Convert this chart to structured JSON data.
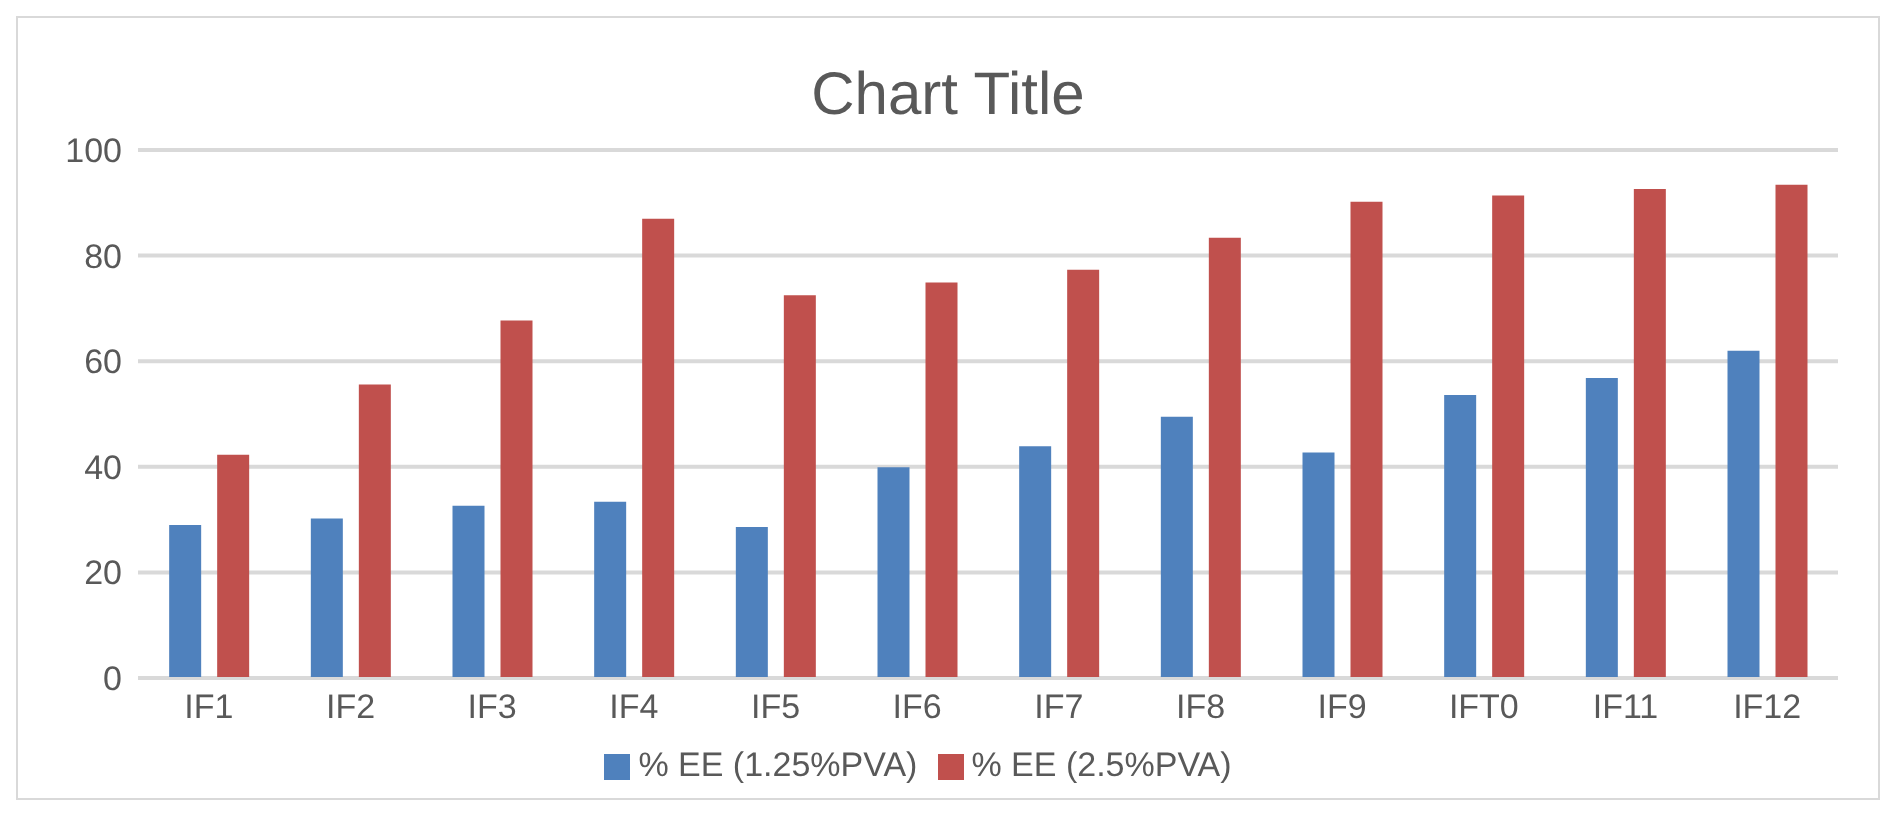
{
  "chart_data": {
    "type": "bar",
    "title": "Chart Title",
    "categories": [
      "IF1",
      "IF2",
      "IF3",
      "IF4",
      "IF5",
      "IF6",
      "IF7",
      "IF8",
      "IF9",
      "IFT0",
      "IF11",
      "IF12"
    ],
    "series": [
      {
        "name": "% EE (1.25%PVA)",
        "color": "#4f81bd",
        "values": [
          29.0,
          30.2,
          32.6,
          33.4,
          28.6,
          39.9,
          43.9,
          49.5,
          42.7,
          53.6,
          56.8,
          62.0
        ]
      },
      {
        "name": "% EE (2.5%PVA)",
        "color": "#c0504d",
        "values": [
          42.3,
          55.6,
          67.7,
          87.0,
          72.5,
          74.9,
          77.3,
          83.4,
          90.2,
          91.4,
          92.6,
          93.4
        ]
      }
    ],
    "ylim": [
      0,
      100
    ],
    "yticks": [
      0,
      20,
      40,
      60,
      80,
      100
    ],
    "grid": "y",
    "legend": "bottom"
  }
}
